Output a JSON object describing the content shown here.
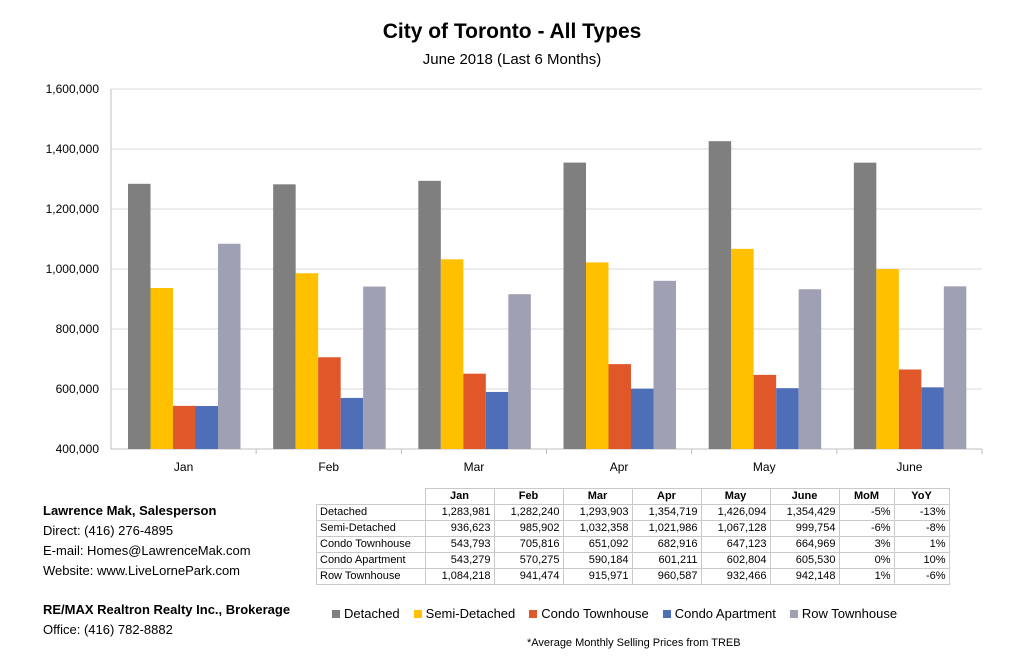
{
  "chart_data": {
    "type": "bar",
    "title": "City of Toronto - All Types",
    "subtitle": "June 2018 (Last 6 Months)",
    "categories": [
      "Jan",
      "Feb",
      "Mar",
      "Apr",
      "May",
      "June"
    ],
    "ylim": [
      400000,
      1600000
    ],
    "yticks": [
      "400,000",
      "600,000",
      "800,000",
      "1,000,000",
      "1,200,000",
      "1,400,000",
      "1,600,000"
    ],
    "ytick_values": [
      400000,
      600000,
      800000,
      1000000,
      1200000,
      1400000,
      1600000
    ],
    "grid": true,
    "legend_position": "bottom",
    "series": [
      {
        "name": "Detached",
        "color": "#7f7f7f",
        "values": [
          1283981,
          1282240,
          1293903,
          1354719,
          1426094,
          1354429
        ]
      },
      {
        "name": "Semi-Detached",
        "color": "#ffc000",
        "values": [
          936623,
          985902,
          1032358,
          1021986,
          1067128,
          999754
        ]
      },
      {
        "name": "Condo Townhouse",
        "color": "#e0572a",
        "values": [
          543793,
          705816,
          651092,
          682916,
          647123,
          664969
        ]
      },
      {
        "name": "Condo Apartment",
        "color": "#4e6fb8",
        "values": [
          543279,
          570275,
          590184,
          601211,
          602804,
          605530
        ]
      },
      {
        "name": "Row Townhouse",
        "color": "#a0a0b4",
        "values": [
          1084218,
          941474,
          915971,
          960587,
          932466,
          942148
        ]
      }
    ]
  },
  "table": {
    "headers": [
      "",
      "Jan",
      "Feb",
      "Mar",
      "Apr",
      "May",
      "June",
      "MoM",
      "YoY"
    ],
    "rows": [
      [
        "Detached",
        "1,283,981",
        "1,282,240",
        "1,293,903",
        "1,354,719",
        "1,426,094",
        "1,354,429",
        "-5%",
        "-13%"
      ],
      [
        "Semi-Detached",
        "936,623",
        "985,902",
        "1,032,358",
        "1,021,986",
        "1,067,128",
        "999,754",
        "-6%",
        "-8%"
      ],
      [
        "Condo Townhouse",
        "543,793",
        "705,816",
        "651,092",
        "682,916",
        "647,123",
        "664,969",
        "3%",
        "1%"
      ],
      [
        "Condo Apartment",
        "543,279",
        "570,275",
        "590,184",
        "601,211",
        "602,804",
        "605,530",
        "0%",
        "10%"
      ],
      [
        "Row Townhouse",
        "1,084,218",
        "941,474",
        "915,971",
        "960,587",
        "932,466",
        "942,148",
        "1%",
        "-6%"
      ]
    ]
  },
  "contact": {
    "name": "Lawrence Mak, Salesperson",
    "direct": "Direct:  (416) 276-4895",
    "email": "E-mail:  Homes@LawrenceMak.com",
    "website": "Website: www.LiveLornePark.com",
    "brokerage": "RE/MAX Realtron Realty Inc., Brokerage",
    "office": "Office: (416) 782-8882"
  },
  "footnote": "*Average Monthly Selling Prices  from TREB"
}
